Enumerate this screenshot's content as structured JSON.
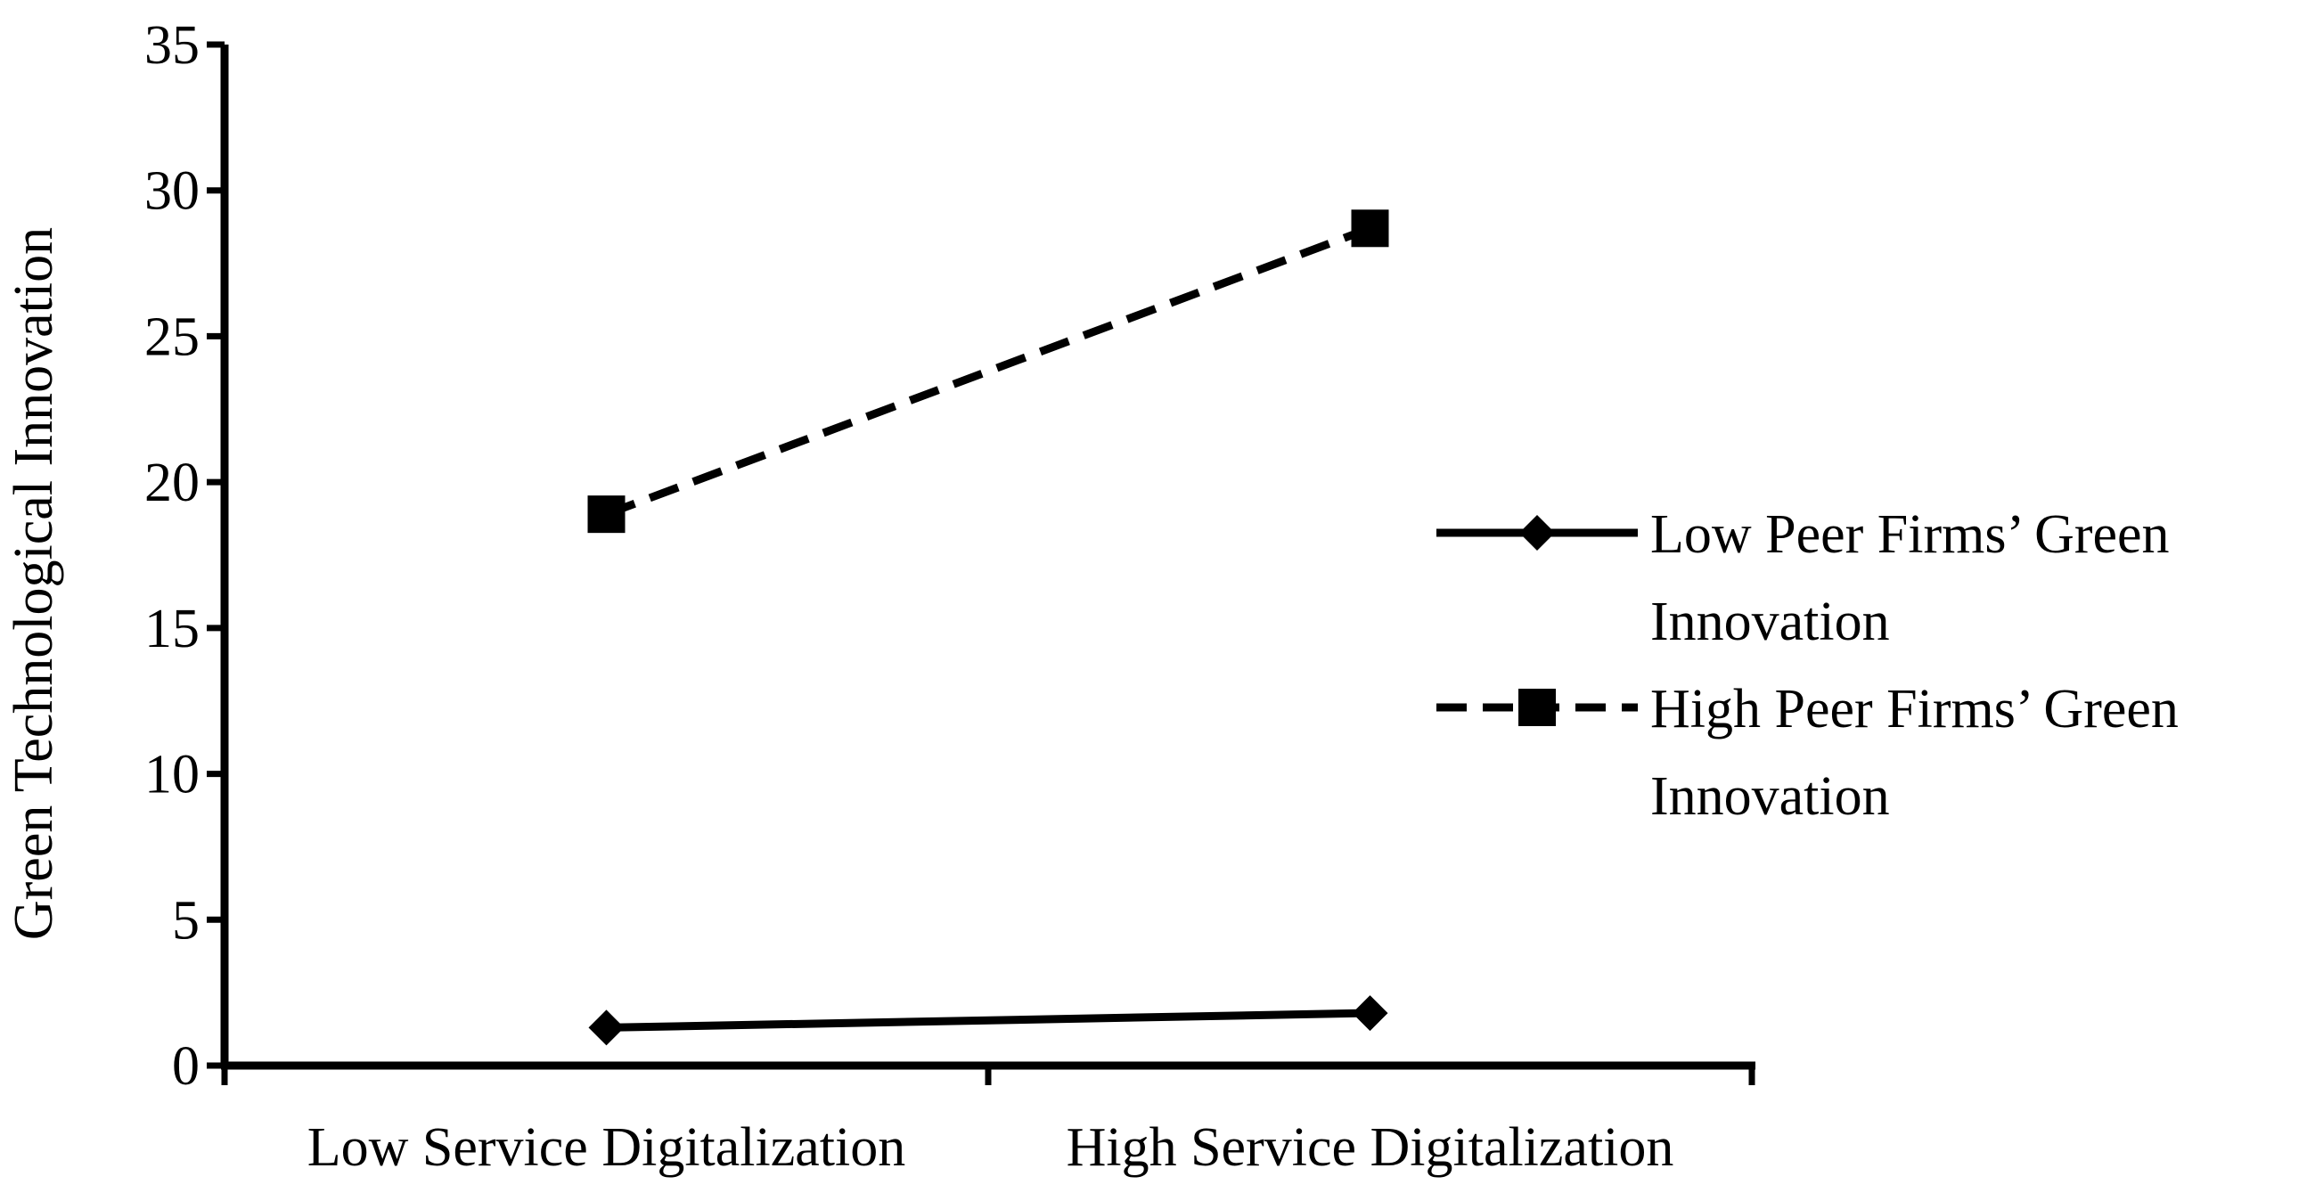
{
  "chart_data": {
    "type": "line",
    "title": "",
    "xlabel": "",
    "ylabel": "Green Technological Innovation",
    "categories": [
      "Low Service Digitalization",
      "High Service Digitalization"
    ],
    "ylim": [
      0,
      35
    ],
    "yticks": [
      0,
      5,
      10,
      15,
      20,
      25,
      30,
      35
    ],
    "grid": false,
    "legend_position": "right",
    "series": [
      {
        "name_lines": [
          "Low Peer Firms’ Green",
          "Innovation"
        ],
        "values": [
          1.3,
          1.8
        ],
        "marker": "diamond",
        "line_style": "solid",
        "color": "#000000"
      },
      {
        "name_lines": [
          "High Peer Firms’ Green",
          "Innovation"
        ],
        "values": [
          18.9,
          28.7
        ],
        "marker": "square",
        "line_style": "dashed",
        "color": "#000000"
      }
    ]
  }
}
